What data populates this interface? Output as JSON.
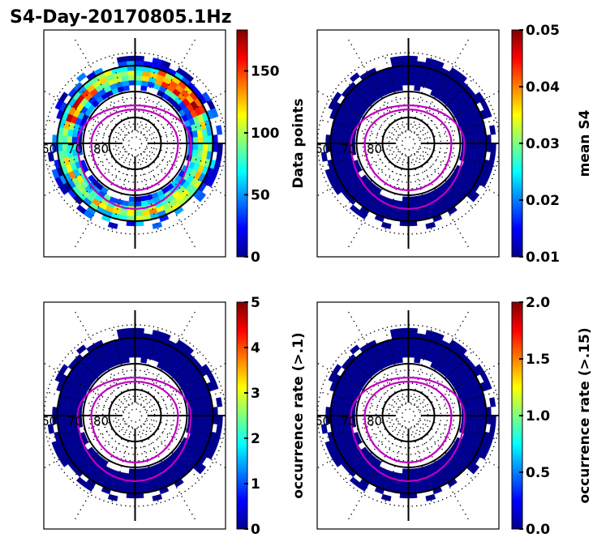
{
  "figure": {
    "title": "S4-Day-20170805.1Hz"
  },
  "chart_data": [
    {
      "type": "heatmap",
      "projection": "polar",
      "panel": "top-left",
      "colormap": "jet",
      "colorbar": {
        "label": "Data points",
        "range": [
          0,
          183
        ],
        "ticks": [
          0,
          50,
          100,
          150
        ],
        "tick_labels": [
          "0",
          "50",
          "100",
          "150"
        ]
      },
      "latitude_labels": [
        "60",
        "70",
        "80"
      ],
      "latitude_rings": [
        60,
        70,
        80
      ],
      "contours": {
        "color": "#c000c0",
        "count": 2
      },
      "value_range_observed": [
        0,
        183
      ]
    },
    {
      "type": "heatmap",
      "projection": "polar",
      "panel": "top-right",
      "colormap": "jet",
      "colorbar": {
        "label": "mean S4",
        "range": [
          0.01,
          0.05
        ],
        "ticks": [
          0.01,
          0.02,
          0.03,
          0.04,
          0.05
        ],
        "tick_labels": [
          "0.01",
          "0.02",
          "0.03",
          "0.04",
          "0.05"
        ]
      },
      "latitude_labels": [
        "60",
        "70",
        "80"
      ],
      "latitude_rings": [
        60,
        70,
        80
      ],
      "contours": {
        "color": "#c000c0",
        "count": 2
      },
      "value_range_observed": [
        0.01,
        0.01
      ]
    },
    {
      "type": "heatmap",
      "projection": "polar",
      "panel": "bottom-left",
      "colormap": "jet",
      "colorbar": {
        "label": "occurrence rate (>.1)",
        "range": [
          0,
          5
        ],
        "ticks": [
          0,
          1,
          2,
          3,
          4,
          5
        ],
        "tick_labels": [
          "0",
          "1",
          "2",
          "3",
          "4",
          "5"
        ]
      },
      "latitude_labels": [
        "60",
        "70",
        "80"
      ],
      "latitude_rings": [
        60,
        70,
        80
      ],
      "contours": {
        "color": "#c000c0",
        "count": 2
      },
      "value_range_observed": [
        0,
        0
      ]
    },
    {
      "type": "heatmap",
      "projection": "polar",
      "panel": "bottom-right",
      "colormap": "jet",
      "colorbar": {
        "label": "occurrence rate (>.15)",
        "range": [
          0.0,
          2.0
        ],
        "ticks": [
          0.0,
          0.5,
          1.0,
          1.5,
          2.0
        ],
        "tick_labels": [
          "0.0",
          "0.5",
          "1.0",
          "1.5",
          "2.0"
        ]
      },
      "latitude_labels": [
        "60",
        "70",
        "80"
      ],
      "latitude_rings": [
        60,
        70,
        80
      ],
      "contours": {
        "color": "#c000c0",
        "count": 2
      },
      "value_range_observed": [
        0.0,
        0.0
      ]
    }
  ],
  "colors": {
    "contour": "#c000c0",
    "grid": "#000000",
    "low_value": "#00008f"
  }
}
